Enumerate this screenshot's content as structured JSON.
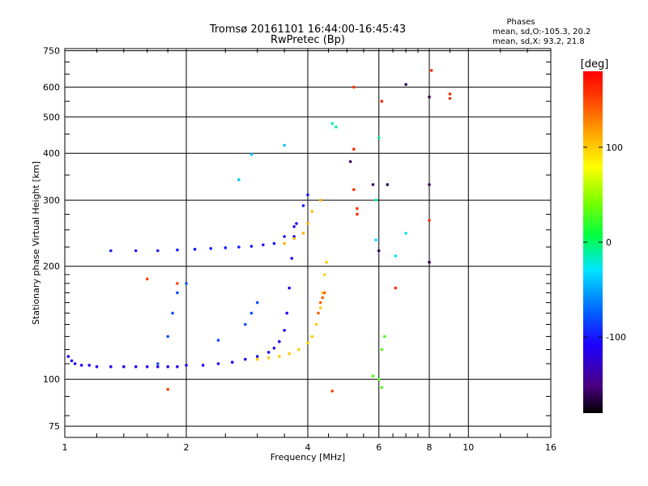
{
  "chart_data": {
    "type": "scatter",
    "title": "Tromsø 20161101 16:44:00-16:45:43",
    "subtitle": "RwPretec (Bp)",
    "xlabel": "Frequency [MHz]",
    "ylabel": "Stationary phase Virtual Height [km]",
    "x_scale": "log",
    "y_scale": "log",
    "xlim": [
      1,
      16
    ],
    "ylim": [
      70,
      760
    ],
    "x_ticks": [
      1,
      2,
      4,
      6,
      8,
      10,
      16
    ],
    "x_tick_labels": [
      "1",
      "2",
      "4",
      "6",
      "8",
      "10",
      "16"
    ],
    "y_ticks": [
      75,
      100,
      200,
      300,
      400,
      500,
      600,
      750
    ],
    "y_tick_labels": [
      "75",
      "100",
      "200",
      "300",
      "400",
      "500",
      "600",
      "750"
    ],
    "grid": true,
    "stats": {
      "heading": "Phases",
      "line1": "mean, sd,O:-105.3, 20.2",
      "line2": "mean, sd,X:  93.2, 21.8"
    },
    "colorbar": {
      "label": "[deg]",
      "min": -180,
      "max": 180,
      "ticks": [
        100,
        0,
        -100
      ],
      "tick_labels": [
        "100",
        "0",
        "-100"
      ],
      "colormap": "rainbow"
    },
    "series": [
      {
        "points": [
          [
            1.02,
            115
          ],
          [
            1.04,
            112
          ],
          [
            1.06,
            110
          ],
          [
            1.1,
            109
          ],
          [
            1.15,
            109
          ],
          [
            1.2,
            108
          ],
          [
            1.3,
            108
          ],
          [
            1.4,
            108
          ],
          [
            1.5,
            108
          ],
          [
            1.6,
            108
          ],
          [
            1.7,
            108
          ],
          [
            1.8,
            108
          ],
          [
            1.9,
            108
          ],
          [
            2.0,
            109
          ],
          [
            2.2,
            109
          ],
          [
            2.4,
            110
          ],
          [
            2.6,
            111
          ],
          [
            2.8,
            113
          ],
          [
            3.0,
            115
          ],
          [
            3.2,
            118
          ],
          [
            3.3,
            121
          ],
          [
            3.4,
            126
          ],
          [
            3.5,
            135
          ],
          [
            3.55,
            150
          ],
          [
            3.6,
            175
          ],
          [
            3.65,
            210
          ],
          [
            3.7,
            240
          ],
          [
            3.75,
            260
          ]
        ],
        "phase": -110
      },
      {
        "points": [
          [
            1.3,
            220
          ],
          [
            1.5,
            220
          ],
          [
            1.7,
            220
          ],
          [
            1.9,
            221
          ],
          [
            2.1,
            222
          ],
          [
            2.3,
            223
          ],
          [
            2.5,
            224
          ],
          [
            2.7,
            225
          ],
          [
            2.9,
            226
          ],
          [
            3.1,
            228
          ],
          [
            3.3,
            230
          ],
          [
            3.5,
            240
          ],
          [
            3.7,
            255
          ],
          [
            3.9,
            290
          ],
          [
            4.0,
            310
          ]
        ],
        "phase": -100
      },
      {
        "points": [
          [
            3.0,
            113
          ],
          [
            3.2,
            114
          ],
          [
            3.4,
            115
          ],
          [
            3.6,
            117
          ],
          [
            3.8,
            120
          ],
          [
            4.0,
            125
          ],
          [
            4.1,
            130
          ],
          [
            4.2,
            140
          ],
          [
            4.3,
            155
          ],
          [
            4.35,
            170
          ],
          [
            4.4,
            190
          ],
          [
            4.45,
            205
          ]
        ],
        "phase": 100
      },
      {
        "points": [
          [
            3.5,
            230
          ],
          [
            3.7,
            237
          ],
          [
            3.9,
            245
          ],
          [
            4.0,
            260
          ],
          [
            4.1,
            280
          ],
          [
            4.3,
            300
          ]
        ],
        "phase": 110
      },
      {
        "points": [
          [
            4.25,
            150
          ],
          [
            4.3,
            160
          ],
          [
            4.35,
            165
          ],
          [
            4.4,
            170
          ]
        ],
        "phase": 140
      },
      {
        "points": [
          [
            1.7,
            110
          ],
          [
            1.8,
            130
          ],
          [
            1.85,
            150
          ],
          [
            1.9,
            170
          ],
          [
            2.0,
            180
          ],
          [
            2.4,
            127
          ],
          [
            2.8,
            140
          ],
          [
            2.9,
            150
          ],
          [
            3.0,
            160
          ]
        ],
        "phase": -80
      },
      {
        "points": [
          [
            4.6,
            480
          ],
          [
            4.7,
            470
          ],
          [
            6.0,
            440
          ],
          [
            6.3,
            330
          ],
          [
            5.9,
            300
          ]
        ],
        "phase": -10
      },
      {
        "points": [
          [
            2.9,
            397
          ],
          [
            2.7,
            340
          ],
          [
            3.5,
            420
          ]
        ],
        "phase": -40
      },
      {
        "points": [
          [
            5.2,
            600
          ],
          [
            6.1,
            550
          ],
          [
            8.1,
            665
          ],
          [
            9.0,
            575
          ],
          [
            9.0,
            560
          ],
          [
            5.2,
            320
          ],
          [
            5.3,
            285
          ],
          [
            5.3,
            275
          ],
          [
            5.2,
            410
          ],
          [
            6.6,
            175
          ],
          [
            8.0,
            265
          ]
        ],
        "phase": 160
      },
      {
        "points": [
          [
            7.0,
            610
          ],
          [
            8.0,
            565
          ],
          [
            8.0,
            330
          ],
          [
            8.0,
            205
          ],
          [
            6.3,
            330
          ],
          [
            5.8,
            330
          ],
          [
            6.0,
            220
          ],
          [
            5.1,
            380
          ]
        ],
        "phase": -160
      },
      {
        "points": [
          [
            6.1,
            95
          ],
          [
            6.1,
            120
          ],
          [
            6.2,
            130
          ],
          [
            6.0,
            100
          ],
          [
            5.8,
            102
          ]
        ],
        "phase": 30
      },
      {
        "points": [
          [
            4.6,
            93
          ],
          [
            1.8,
            94
          ],
          [
            1.9,
            180
          ],
          [
            1.6,
            185
          ]
        ],
        "phase": 150
      },
      {
        "points": [
          [
            7.0,
            245
          ],
          [
            6.6,
            213
          ],
          [
            5.9,
            235
          ]
        ],
        "phase": -30
      }
    ]
  }
}
